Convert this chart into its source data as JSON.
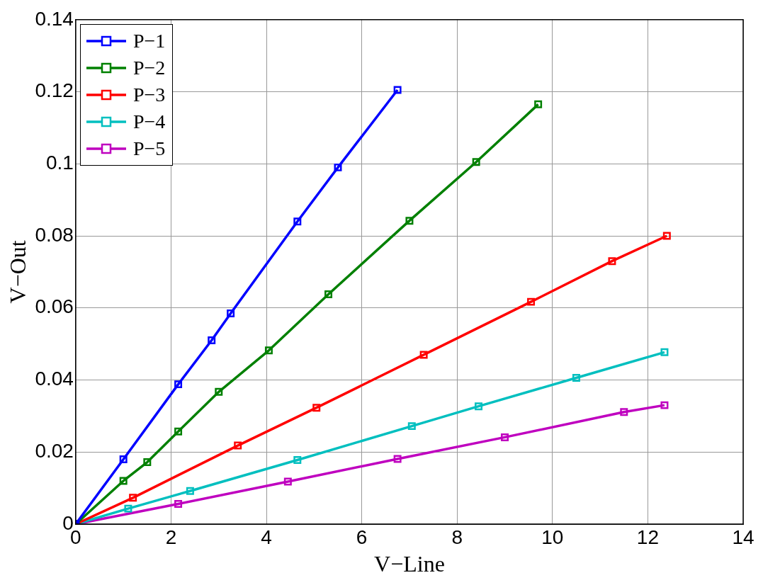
{
  "chart_data": {
    "type": "line",
    "xlabel": "V−Line",
    "ylabel": "V−Out",
    "xlim": [
      0,
      14
    ],
    "xticks": [
      0,
      2,
      4,
      6,
      8,
      10,
      12,
      14
    ],
    "ylim": [
      0,
      0.14
    ],
    "yticks": [
      0,
      0.02,
      0.04,
      0.06,
      0.08,
      0.1,
      0.12,
      0.14
    ],
    "grid": true,
    "legend": "top left",
    "marker": "square",
    "line_style": "solid",
    "series": [
      {
        "name": "P−1",
        "color": "#0000ff",
        "x": [
          0,
          1.0,
          2.15,
          2.85,
          3.25,
          4.65,
          5.5,
          6.75
        ],
        "values": [
          0,
          0.018,
          0.0388,
          0.051,
          0.0585,
          0.084,
          0.099,
          0.1205
        ]
      },
      {
        "name": "P−2",
        "color": "#008000",
        "x": [
          0,
          1.0,
          1.5,
          2.15,
          3.0,
          4.05,
          5.3,
          7.0,
          8.4,
          9.7
        ],
        "values": [
          0,
          0.012,
          0.0172,
          0.0257,
          0.0367,
          0.0482,
          0.0638,
          0.0842,
          0.1005,
          0.1165
        ]
      },
      {
        "name": "P−3",
        "color": "#ff0000",
        "x": [
          0,
          1.2,
          3.4,
          5.05,
          7.3,
          9.55,
          11.25,
          12.4
        ],
        "values": [
          0,
          0.0073,
          0.0218,
          0.0323,
          0.047,
          0.0617,
          0.073,
          0.08
        ]
      },
      {
        "name": "P−4",
        "color": "#00bfbf",
        "x": [
          0,
          1.1,
          2.4,
          4.65,
          7.05,
          8.45,
          10.5,
          12.35
        ],
        "values": [
          0,
          0.0043,
          0.0092,
          0.0178,
          0.0272,
          0.0327,
          0.0406,
          0.0477
        ]
      },
      {
        "name": "P−5",
        "color": "#bf00bf",
        "x": [
          0,
          2.15,
          4.45,
          6.75,
          9.0,
          11.5,
          12.35
        ],
        "values": [
          0,
          0.0056,
          0.0118,
          0.0181,
          0.0241,
          0.0311,
          0.033
        ]
      }
    ]
  }
}
